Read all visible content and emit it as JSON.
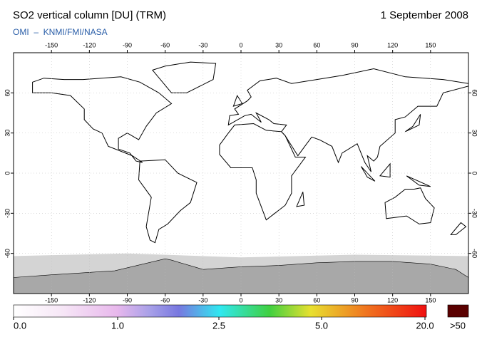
{
  "header": {
    "title": "SO2 vertical column [DU] (TRM)",
    "date": "1 September 2008",
    "subtitle": "OMI  –  KNMI/FMI/NASA"
  },
  "map": {
    "lon_range": [
      -180,
      180
    ],
    "lat_range": [
      -90,
      90
    ],
    "lon_ticks": [
      -150,
      -120,
      -90,
      -60,
      -30,
      0,
      30,
      60,
      90,
      120,
      150
    ],
    "lat_ticks": [
      60,
      30,
      0,
      -30,
      -60
    ]
  },
  "colorbar": {
    "labels": [
      "0.0",
      "1.0",
      "2.5",
      "5.0",
      "20.0"
    ],
    "overflow": ">50"
  }
}
